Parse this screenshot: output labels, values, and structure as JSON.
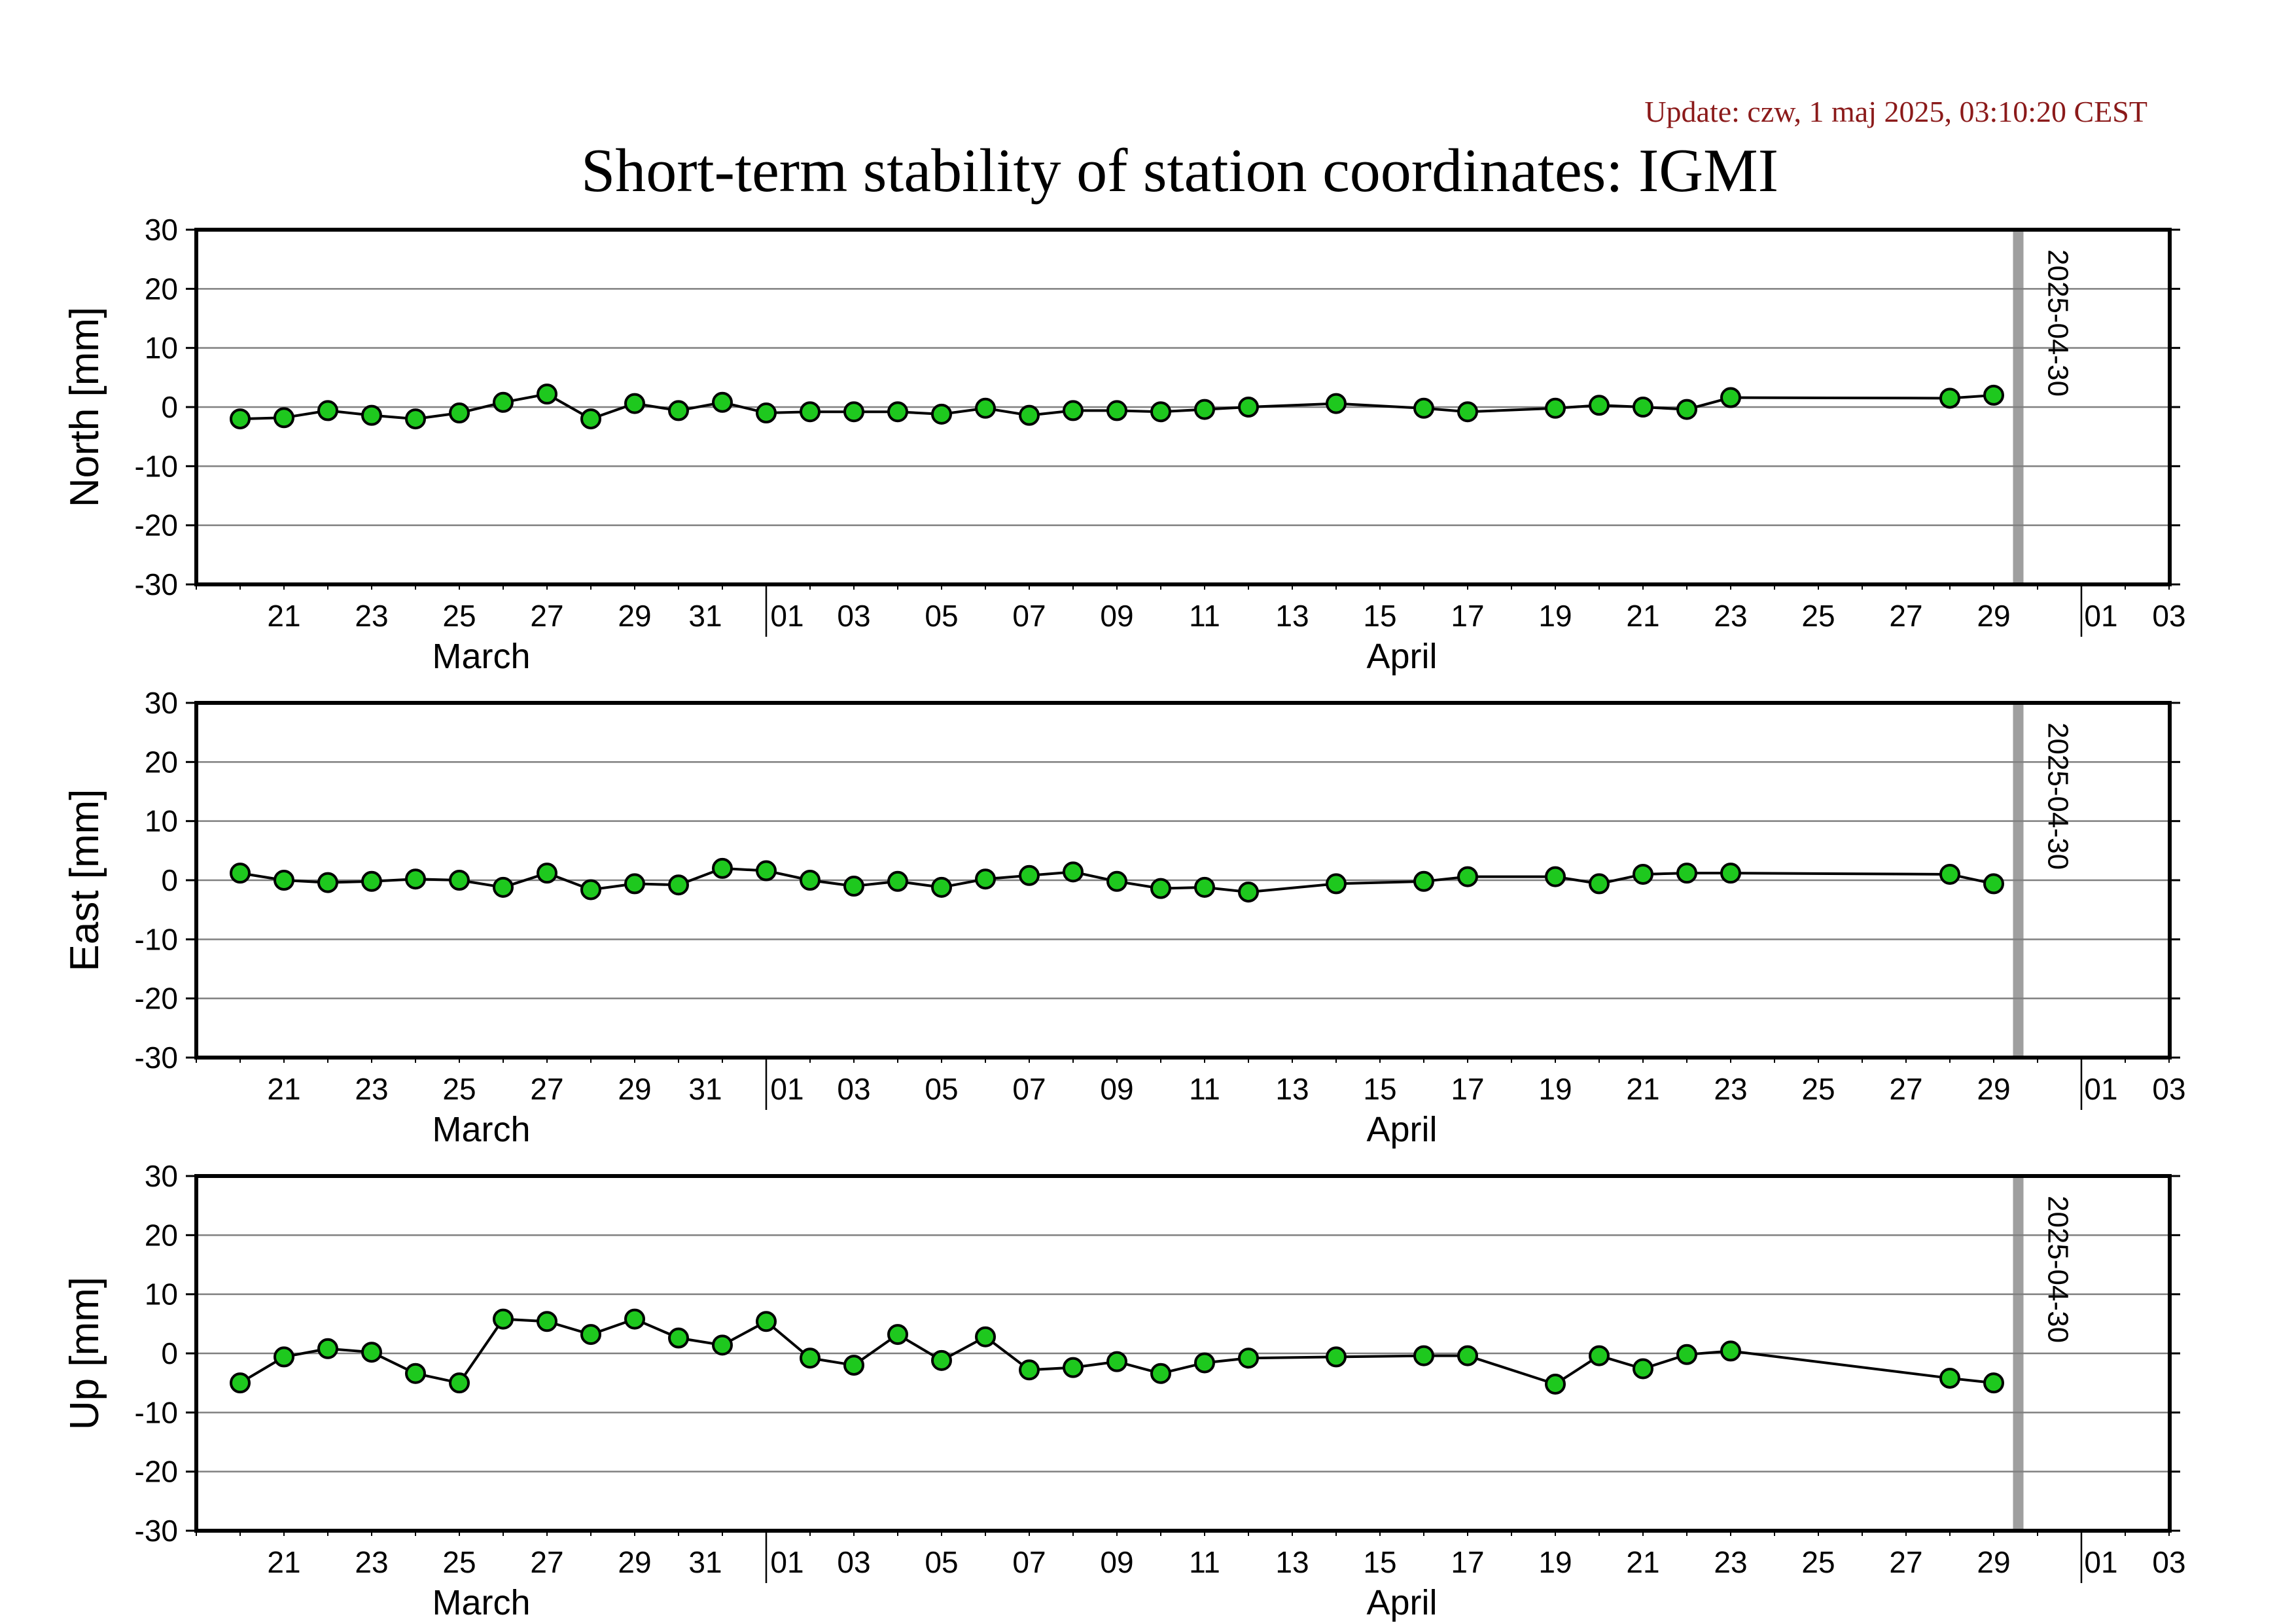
{
  "update_text": "Update: czw, 1 maj 2025, 03:10:20 CEST",
  "title": "Short-term stability of station coordinates: IGMI",
  "colors": {
    "update": "#8b1a1a",
    "marker_fill": "#1ec81e",
    "marker_line": "#7f7f7f",
    "gridline": "#808080"
  },
  "chart_data": [
    {
      "type": "line",
      "ylabel": "North [mm]",
      "ylim": [
        -30,
        30
      ],
      "yticks": [
        30,
        20,
        10,
        0,
        -10,
        -20,
        -30
      ],
      "xlim": [
        "2025-03-19",
        "2025-05-04"
      ],
      "grid": "horizontal",
      "x_tick_labels": [
        "21",
        "23",
        "25",
        "27",
        "29",
        "31",
        "01",
        "03",
        "05",
        "07",
        "09",
        "11",
        "13",
        "15",
        "17",
        "19",
        "21",
        "23",
        "25",
        "27",
        "29",
        "01",
        "03"
      ],
      "month_labels": [
        "March",
        "April"
      ],
      "marker": {
        "date": "2025-04-30",
        "label": "2025-04-30"
      },
      "x": [
        "2025-03-20",
        "2025-03-21",
        "2025-03-22",
        "2025-03-23",
        "2025-03-24",
        "2025-03-25",
        "2025-03-26",
        "2025-03-27",
        "2025-03-28",
        "2025-03-29",
        "2025-03-30",
        "2025-03-31",
        "2025-04-01",
        "2025-04-02",
        "2025-04-03",
        "2025-04-04",
        "2025-04-05",
        "2025-04-06",
        "2025-04-07",
        "2025-04-08",
        "2025-04-09",
        "2025-04-10",
        "2025-04-11",
        "2025-04-12",
        "2025-04-14",
        "2025-04-16",
        "2025-04-17",
        "2025-04-19",
        "2025-04-20",
        "2025-04-21",
        "2025-04-22",
        "2025-04-23",
        "2025-04-28",
        "2025-04-29"
      ],
      "y": [
        -2,
        -1.8,
        -0.6,
        -1.4,
        -2,
        -1,
        0.8,
        2.2,
        -2,
        0.6,
        -0.6,
        0.8,
        -1,
        -0.8,
        -0.8,
        -0.8,
        -1.2,
        -0.2,
        -1.4,
        -0.6,
        -0.6,
        -0.8,
        -0.4,
        0,
        0.6,
        -0.2,
        -0.8,
        -0.2,
        0.3,
        0,
        -0.4,
        1.6,
        1.5,
        2
      ]
    },
    {
      "type": "line",
      "ylabel": "East [mm]",
      "ylim": [
        -30,
        30
      ],
      "yticks": [
        30,
        20,
        10,
        0,
        -10,
        -20,
        -30
      ],
      "xlim": [
        "2025-03-19",
        "2025-05-04"
      ],
      "grid": "horizontal",
      "x_tick_labels": [
        "21",
        "23",
        "25",
        "27",
        "29",
        "31",
        "01",
        "03",
        "05",
        "07",
        "09",
        "11",
        "13",
        "15",
        "17",
        "19",
        "21",
        "23",
        "25",
        "27",
        "29",
        "01",
        "03"
      ],
      "month_labels": [
        "March",
        "April"
      ],
      "marker": {
        "date": "2025-04-30",
        "label": "2025-04-30"
      },
      "x": [
        "2025-03-20",
        "2025-03-21",
        "2025-03-22",
        "2025-03-23",
        "2025-03-24",
        "2025-03-25",
        "2025-03-26",
        "2025-03-27",
        "2025-03-28",
        "2025-03-29",
        "2025-03-30",
        "2025-03-31",
        "2025-04-01",
        "2025-04-02",
        "2025-04-03",
        "2025-04-04",
        "2025-04-05",
        "2025-04-06",
        "2025-04-07",
        "2025-04-08",
        "2025-04-09",
        "2025-04-10",
        "2025-04-11",
        "2025-04-12",
        "2025-04-14",
        "2025-04-16",
        "2025-04-17",
        "2025-04-19",
        "2025-04-20",
        "2025-04-21",
        "2025-04-22",
        "2025-04-23",
        "2025-04-28",
        "2025-04-29"
      ],
      "y": [
        1.2,
        0,
        -0.4,
        -0.2,
        0.2,
        0,
        -1.2,
        1.2,
        -1.6,
        -0.6,
        -0.8,
        2,
        1.6,
        0,
        -1,
        -0.2,
        -1.2,
        0.2,
        0.8,
        1.4,
        -0.2,
        -1.4,
        -1.2,
        -2,
        -0.6,
        -0.2,
        0.6,
        0.6,
        -0.6,
        1,
        1.2,
        1.2,
        1,
        -0.6
      ]
    },
    {
      "type": "line",
      "ylabel": "Up [mm]",
      "ylim": [
        -30,
        30
      ],
      "yticks": [
        30,
        20,
        10,
        0,
        -10,
        -20,
        -30
      ],
      "xlim": [
        "2025-03-19",
        "2025-05-04"
      ],
      "grid": "horizontal",
      "x_tick_labels": [
        "21",
        "23",
        "25",
        "27",
        "29",
        "31",
        "01",
        "03",
        "05",
        "07",
        "09",
        "11",
        "13",
        "15",
        "17",
        "19",
        "21",
        "23",
        "25",
        "27",
        "29",
        "01",
        "03"
      ],
      "month_labels": [
        "March",
        "April"
      ],
      "marker": {
        "date": "2025-04-30",
        "label": "2025-04-30"
      },
      "x": [
        "2025-03-20",
        "2025-03-21",
        "2025-03-22",
        "2025-03-23",
        "2025-03-24",
        "2025-03-25",
        "2025-03-26",
        "2025-03-27",
        "2025-03-28",
        "2025-03-29",
        "2025-03-30",
        "2025-03-31",
        "2025-04-01",
        "2025-04-02",
        "2025-04-03",
        "2025-04-04",
        "2025-04-05",
        "2025-04-06",
        "2025-04-07",
        "2025-04-08",
        "2025-04-09",
        "2025-04-10",
        "2025-04-11",
        "2025-04-12",
        "2025-04-14",
        "2025-04-16",
        "2025-04-17",
        "2025-04-19",
        "2025-04-20",
        "2025-04-21",
        "2025-04-22",
        "2025-04-23",
        "2025-04-28",
        "2025-04-29"
      ],
      "y": [
        -5,
        -0.6,
        0.8,
        0.2,
        -3.4,
        -5,
        5.8,
        5.4,
        3.2,
        5.8,
        2.6,
        1.4,
        5.4,
        -0.8,
        -2,
        3.2,
        -1.2,
        2.8,
        -2.8,
        -2.4,
        -1.4,
        -3.4,
        -1.6,
        -0.8,
        -0.6,
        -0.4,
        -0.4,
        -5.2,
        -0.4,
        -2.6,
        -0.2,
        0.4,
        -4.2,
        -5
      ]
    }
  ]
}
